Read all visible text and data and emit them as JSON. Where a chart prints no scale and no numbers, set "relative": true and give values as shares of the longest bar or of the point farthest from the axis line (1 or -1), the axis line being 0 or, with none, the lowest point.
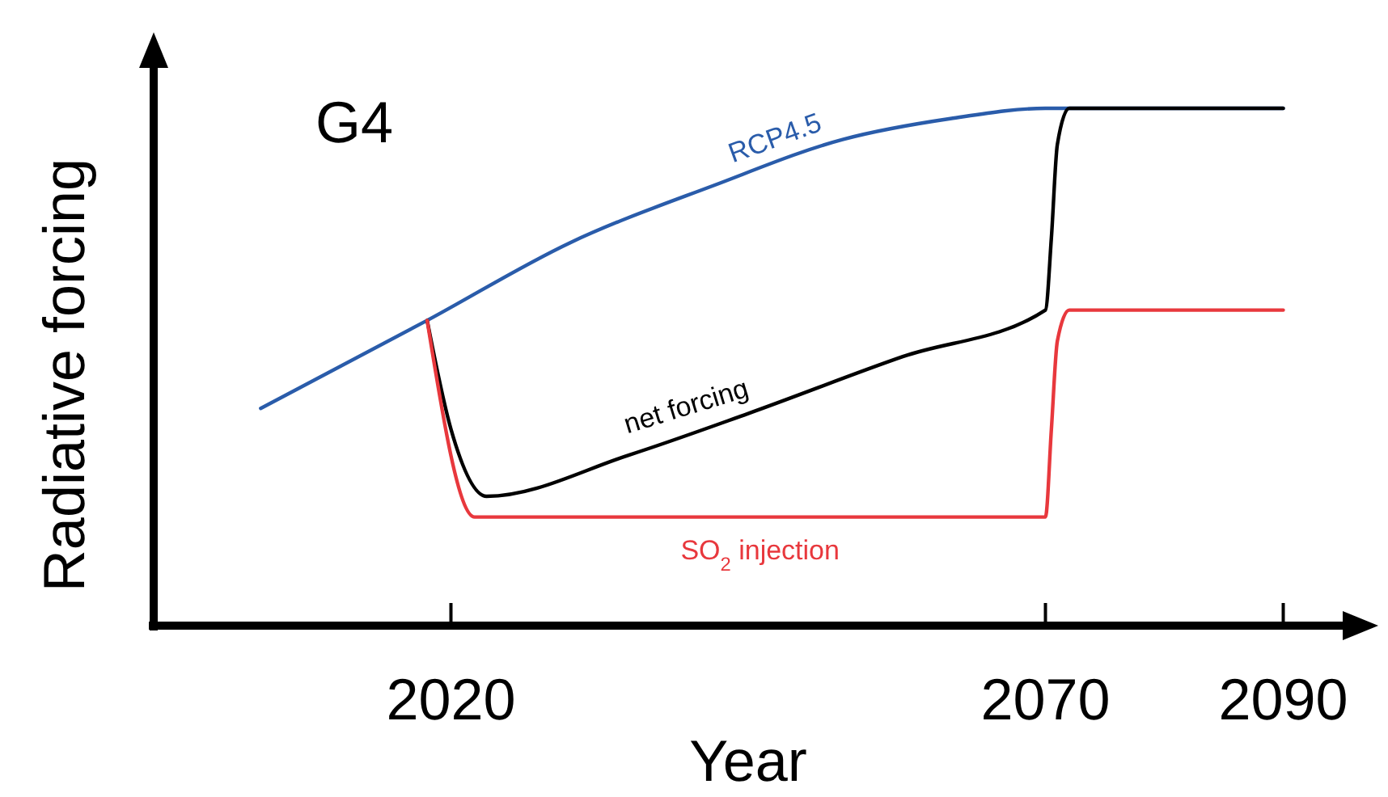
{
  "chart_data": {
    "type": "line",
    "title": "G4",
    "xlabel": "Year",
    "ylabel": "Radiative forcing",
    "relative": true,
    "xlim": [
      1995,
      2095
    ],
    "xticks": [
      2020,
      2070,
      2090
    ],
    "tick_labels": "x",
    "grid": false,
    "marker": "none",
    "line_style": "solid",
    "series": [
      {
        "name": "RCP4.5",
        "color": "#2a5caa",
        "x": [
          2004,
          2018,
          2030,
          2042,
          2053,
          2062,
          2070,
          2090
        ],
        "values": [
          0.42,
          0.59,
          0.74,
          0.85,
          0.94,
          0.98,
          1.0,
          1.0
        ]
      },
      {
        "name": "net forcing",
        "color": "#000000",
        "x": [
          2018,
          2020,
          2023,
          2035,
          2045,
          2058,
          2070,
          2070.5,
          2071,
          2072,
          2090
        ],
        "values": [
          0.59,
          0.38,
          0.25,
          0.33,
          0.41,
          0.52,
          0.61,
          0.75,
          0.93,
          1.0,
          1.0
        ]
      },
      {
        "name": "SO$_{2}$ injection",
        "color": "#e8383d",
        "x": [
          2018,
          2022,
          2070,
          2070.5,
          2071,
          2072,
          2090
        ],
        "values": [
          0.59,
          0.21,
          0.21,
          0.38,
          0.55,
          0.61,
          0.61
        ]
      }
    ]
  }
}
